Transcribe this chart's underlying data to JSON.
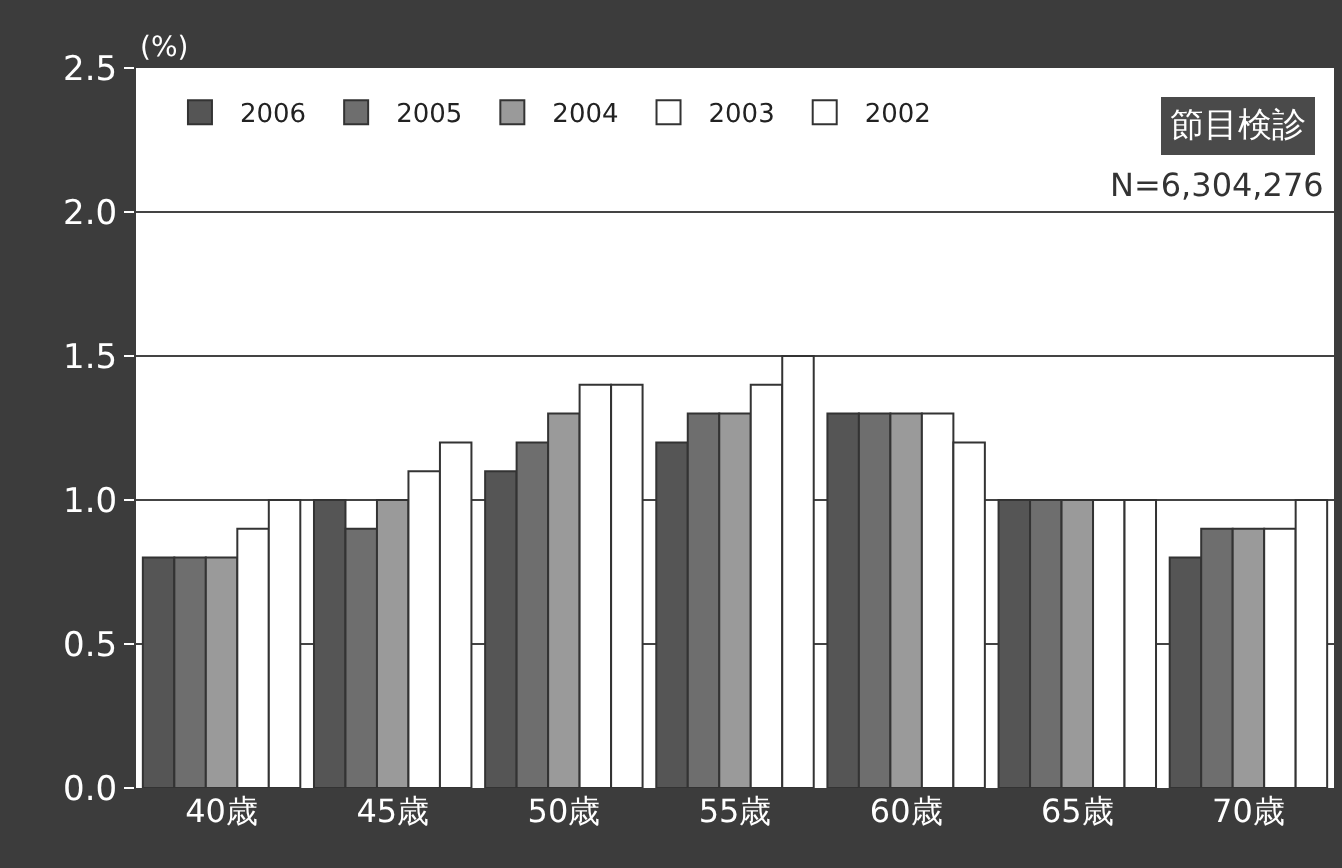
{
  "chart_data": {
    "type": "bar",
    "ylabel": "(%)",
    "categories": [
      "40歳",
      "45歳",
      "50歳",
      "55歳",
      "60歳",
      "65歳",
      "70歳"
    ],
    "series": [
      {
        "name": "2006",
        "color": "#555555",
        "values": [
          0.8,
          1.0,
          1.1,
          1.2,
          1.3,
          1.0,
          0.8
        ]
      },
      {
        "name": "2005",
        "color": "#6e6e6e",
        "values": [
          0.8,
          0.9,
          1.2,
          1.3,
          1.3,
          1.0,
          0.9
        ]
      },
      {
        "name": "2004",
        "color": "#9a9a9a",
        "values": [
          0.8,
          1.0,
          1.3,
          1.3,
          1.3,
          1.0,
          0.9
        ]
      },
      {
        "name": "2003",
        "color": "#ffffff",
        "values": [
          0.9,
          1.1,
          1.4,
          1.4,
          1.3,
          1.0,
          0.9
        ]
      },
      {
        "name": "2002",
        "color": "#ffffff",
        "values": [
          1.0,
          1.2,
          1.4,
          1.5,
          1.2,
          1.0,
          1.0
        ]
      }
    ],
    "ylim": [
      0,
      2.5
    ],
    "yticks": [
      {
        "value": 0,
        "label": "0.0"
      },
      {
        "value": 0.5,
        "label": "0.5"
      },
      {
        "value": 1,
        "label": "1.0"
      },
      {
        "value": 1.5,
        "label": "1.5"
      },
      {
        "value": 2,
        "label": "2.0"
      },
      {
        "value": 2.5,
        "label": "2.5"
      }
    ],
    "grid": "y",
    "legend": "top left",
    "annotations": [
      "節目検診",
      "N=6,304,276"
    ]
  }
}
